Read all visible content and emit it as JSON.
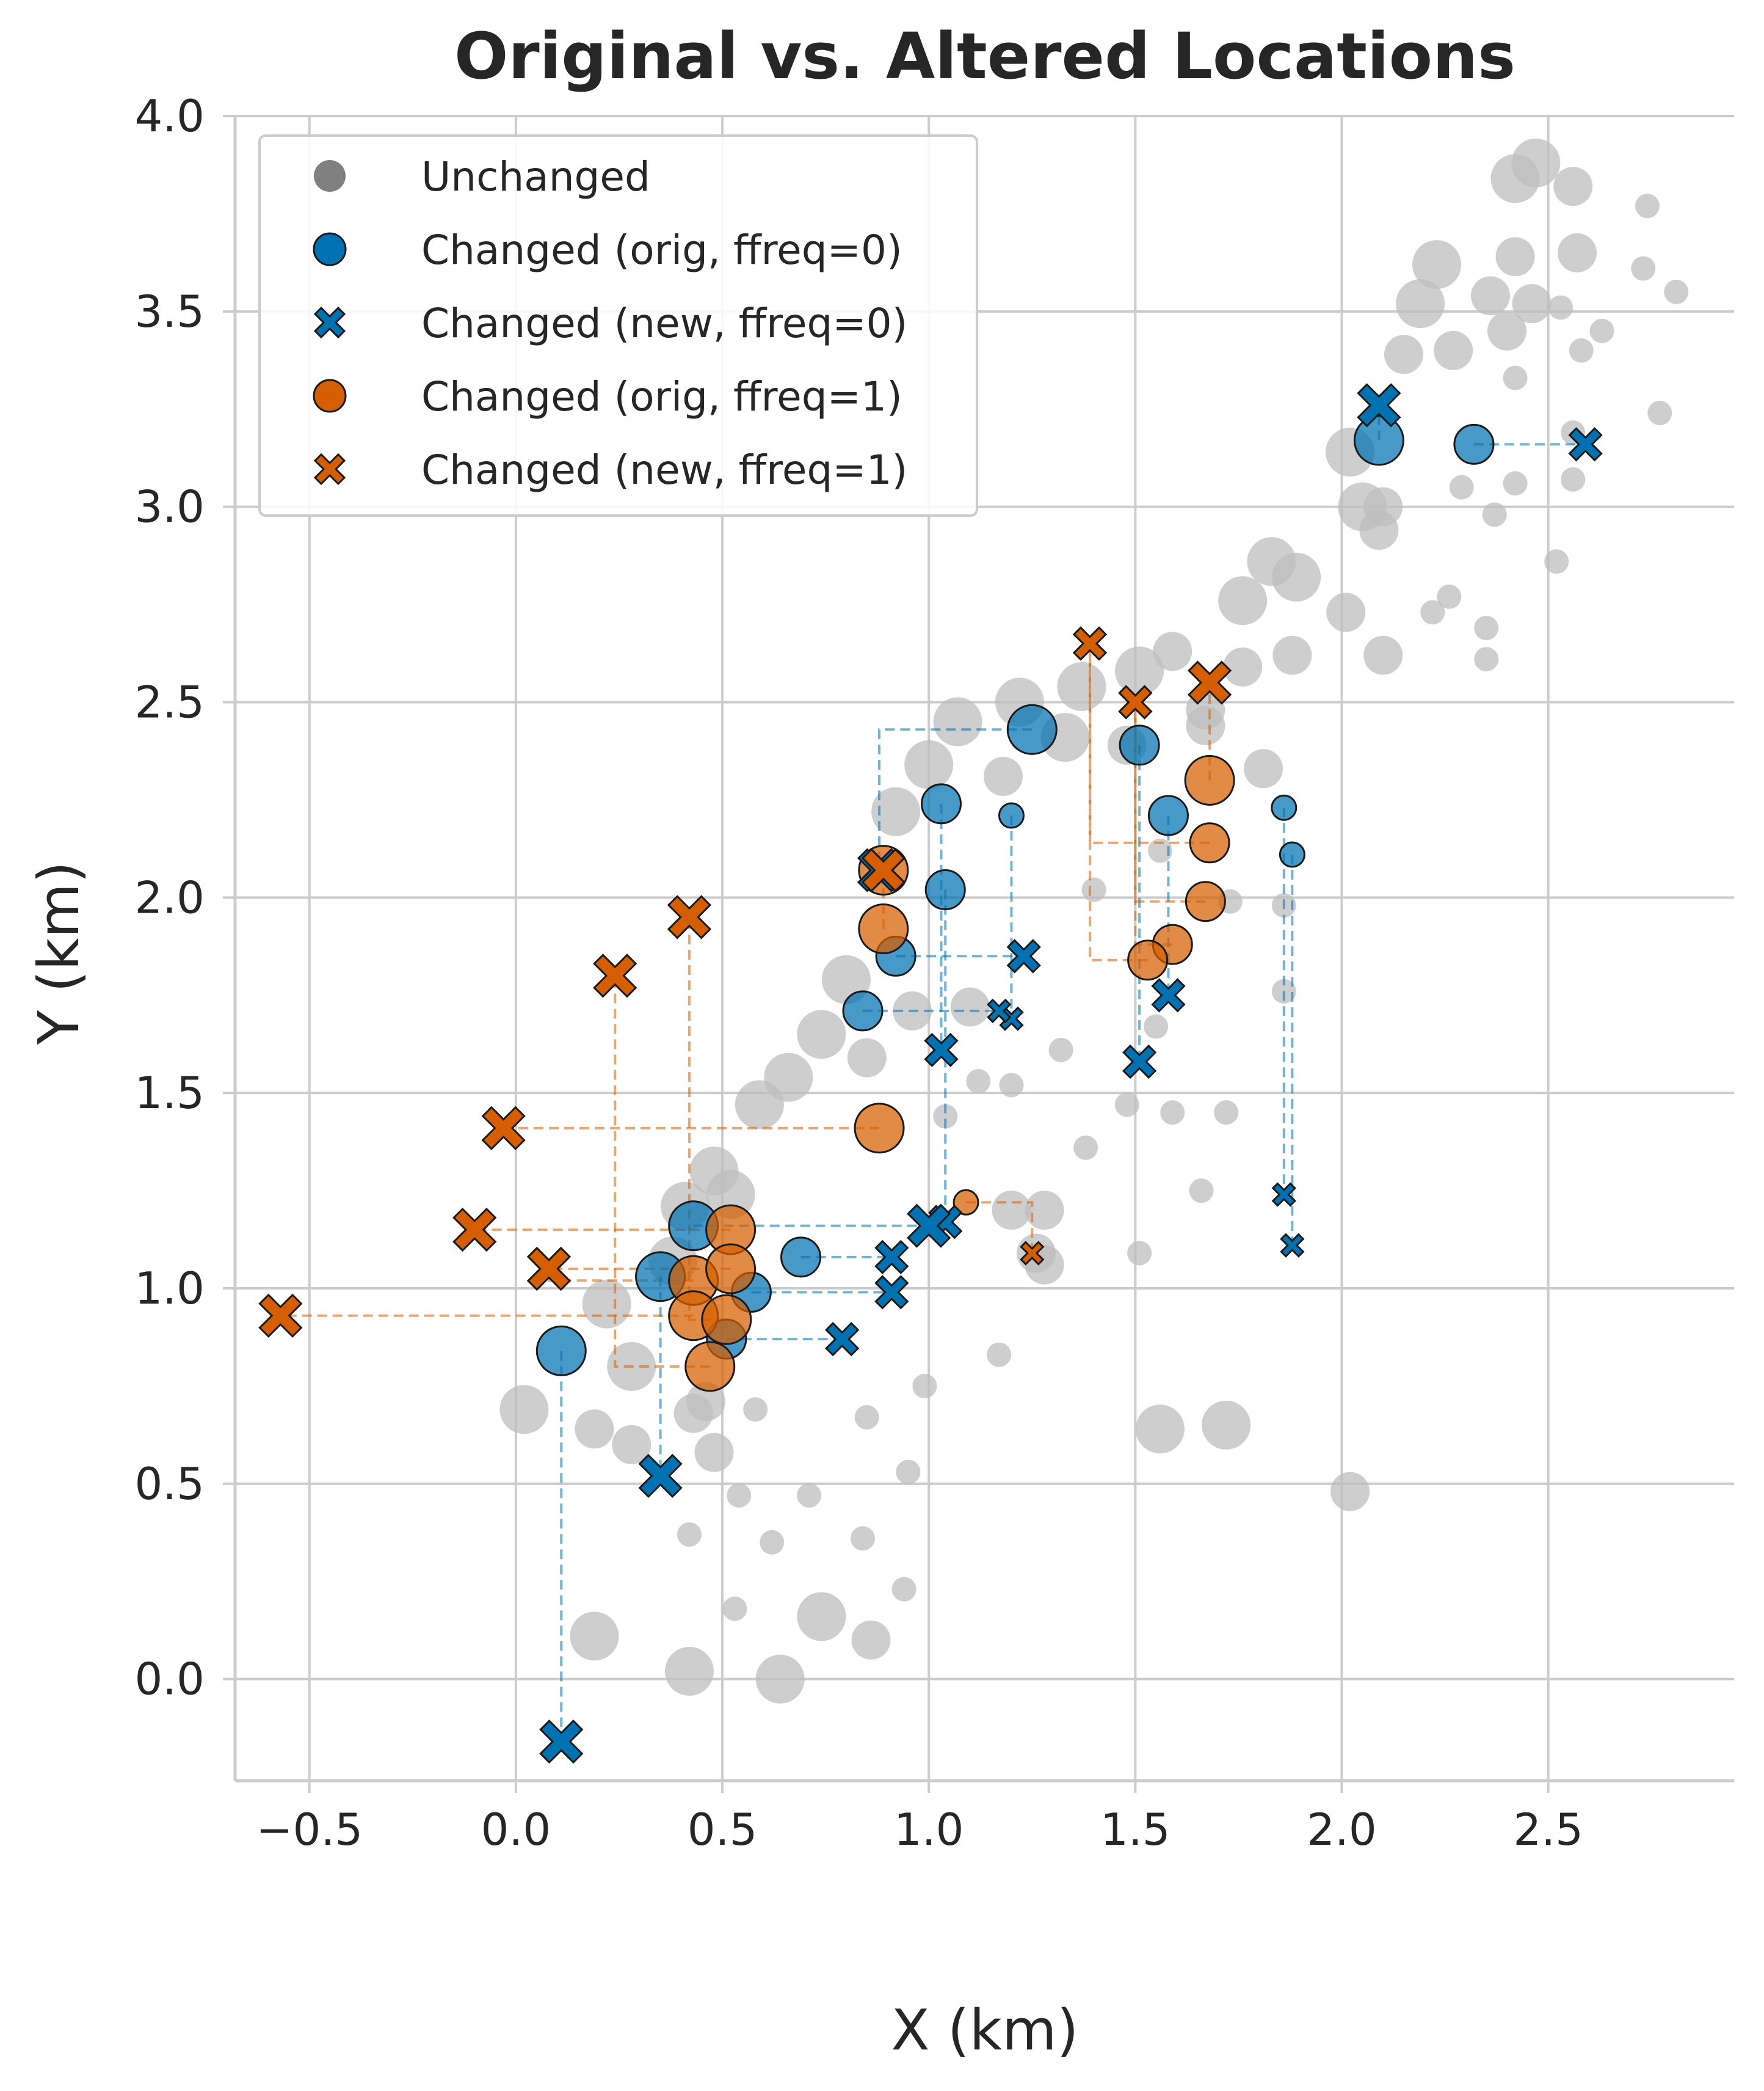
{
  "chart_data": {
    "type": "scatter",
    "title": "Original vs. Altered Locations",
    "xlabel": "X (km)",
    "ylabel": "Y (km)",
    "xlim": [
      -0.68,
      2.95
    ],
    "ylim": [
      -0.26,
      4.0
    ],
    "xticks": [
      -0.5,
      0.0,
      0.5,
      1.0,
      1.5,
      2.0,
      2.5
    ],
    "xtick_labels": [
      "−0.5",
      "0.0",
      "0.5",
      "1.0",
      "1.5",
      "2.0",
      "2.5"
    ],
    "yticks": [
      0.0,
      0.5,
      1.0,
      1.5,
      2.0,
      2.5,
      3.0,
      3.5,
      4.0
    ],
    "ytick_labels": [
      "0.0",
      "0.5",
      "1.0",
      "1.5",
      "2.0",
      "2.5",
      "3.0",
      "3.5",
      "4.0"
    ],
    "grid": true,
    "legend_position": "top-left",
    "colors": {
      "unchanged": "#bdbdbd",
      "unchanged_legend": "#808080",
      "ffreq0": "#0072b2",
      "ffreq1": "#d55e00",
      "grid": "#cccccc",
      "text": "#262626"
    },
    "legend": [
      {
        "label": "Unchanged",
        "marker": "circle",
        "color": "#808080"
      },
      {
        "label": "Changed (orig, ffreq=0)",
        "marker": "circle",
        "color": "#0072b2"
      },
      {
        "label": "Changed (new, ffreq=0)",
        "marker": "x",
        "color": "#0072b2"
      },
      {
        "label": "Changed (orig, ffreq=1)",
        "marker": "circle",
        "color": "#d55e00"
      },
      {
        "label": "Changed (new, ffreq=1)",
        "marker": "x",
        "color": "#d55e00"
      }
    ],
    "unchanged_points": [
      [
        2.47,
        3.88,
        2
      ],
      [
        2.42,
        3.84,
        2
      ],
      [
        2.56,
        3.82,
        1
      ],
      [
        2.74,
        3.77,
        0
      ],
      [
        2.23,
        3.62,
        2
      ],
      [
        2.42,
        3.64,
        1
      ],
      [
        2.57,
        3.65,
        1
      ],
      [
        2.73,
        3.61,
        0
      ],
      [
        2.81,
        3.55,
        0
      ],
      [
        2.19,
        3.52,
        2
      ],
      [
        2.36,
        3.54,
        1
      ],
      [
        2.46,
        3.52,
        1
      ],
      [
        2.53,
        3.51,
        0
      ],
      [
        2.27,
        3.4,
        1
      ],
      [
        2.4,
        3.45,
        1
      ],
      [
        2.63,
        3.45,
        0
      ],
      [
        2.58,
        3.4,
        0
      ],
      [
        2.15,
        3.39,
        1
      ],
      [
        2.42,
        3.33,
        0
      ],
      [
        2.56,
        3.19,
        0
      ],
      [
        2.77,
        3.24,
        0
      ],
      [
        2.02,
        3.14,
        2
      ],
      [
        2.05,
        3.0,
        2
      ],
      [
        2.1,
        3.0,
        1
      ],
      [
        2.09,
        2.94,
        1
      ],
      [
        2.29,
        3.05,
        0
      ],
      [
        2.42,
        3.06,
        0
      ],
      [
        2.37,
        2.98,
        0
      ],
      [
        2.56,
        3.07,
        0
      ],
      [
        2.52,
        2.86,
        0
      ],
      [
        1.83,
        2.86,
        2
      ],
      [
        1.89,
        2.82,
        2
      ],
      [
        1.76,
        2.76,
        2
      ],
      [
        2.01,
        2.73,
        1
      ],
      [
        2.26,
        2.77,
        0
      ],
      [
        2.22,
        2.73,
        0
      ],
      [
        2.35,
        2.69,
        0
      ],
      [
        2.1,
        2.62,
        1
      ],
      [
        1.88,
        2.62,
        1
      ],
      [
        2.35,
        2.61,
        0
      ],
      [
        1.51,
        2.58,
        2
      ],
      [
        1.59,
        2.63,
        1
      ],
      [
        1.76,
        2.59,
        1
      ],
      [
        1.37,
        2.54,
        2
      ],
      [
        1.22,
        2.5,
        2
      ],
      [
        1.33,
        2.41,
        2
      ],
      [
        1.07,
        2.45,
        2
      ],
      [
        1.67,
        2.44,
        1
      ],
      [
        1.67,
        2.48,
        1
      ],
      [
        1.0,
        2.34,
        2
      ],
      [
        1.48,
        2.39,
        1
      ],
      [
        1.18,
        2.31,
        1
      ],
      [
        0.92,
        2.22,
        2
      ],
      [
        1.81,
        2.33,
        1
      ],
      [
        1.4,
        2.02,
        0
      ],
      [
        1.73,
        1.99,
        0
      ],
      [
        1.86,
        1.98,
        0
      ],
      [
        1.56,
        2.12,
        0
      ],
      [
        0.8,
        1.79,
        2
      ],
      [
        0.96,
        1.71,
        1
      ],
      [
        1.1,
        1.72,
        1
      ],
      [
        0.74,
        1.65,
        2
      ],
      [
        0.85,
        1.59,
        1
      ],
      [
        1.12,
        1.53,
        0
      ],
      [
        1.2,
        1.52,
        0
      ],
      [
        1.32,
        1.61,
        0
      ],
      [
        1.55,
        1.67,
        0
      ],
      [
        1.86,
        1.76,
        0
      ],
      [
        0.66,
        1.54,
        2
      ],
      [
        0.59,
        1.47,
        2
      ],
      [
        1.04,
        1.44,
        0
      ],
      [
        1.48,
        1.47,
        0
      ],
      [
        1.59,
        1.45,
        0
      ],
      [
        1.72,
        1.45,
        0
      ],
      [
        1.38,
        1.36,
        0
      ],
      [
        0.48,
        1.3,
        2
      ],
      [
        0.52,
        1.24,
        2
      ],
      [
        0.41,
        1.21,
        2
      ],
      [
        1.2,
        1.2,
        1
      ],
      [
        1.28,
        1.2,
        1
      ],
      [
        1.66,
        1.25,
        0
      ],
      [
        0.38,
        1.07,
        2
      ],
      [
        1.28,
        1.06,
        1
      ],
      [
        1.51,
        1.09,
        0
      ],
      [
        1.26,
        1.09,
        1
      ],
      [
        0.22,
        0.96,
        2
      ],
      [
        0.28,
        0.8,
        2
      ],
      [
        0.46,
        0.71,
        1
      ],
      [
        0.99,
        0.75,
        0
      ],
      [
        1.17,
        0.83,
        0
      ],
      [
        0.43,
        0.68,
        1
      ],
      [
        0.58,
        0.69,
        0
      ],
      [
        0.02,
        0.69,
        2
      ],
      [
        0.19,
        0.64,
        1
      ],
      [
        0.28,
        0.6,
        1
      ],
      [
        0.48,
        0.58,
        1
      ],
      [
        0.85,
        0.67,
        0
      ],
      [
        1.56,
        0.64,
        2
      ],
      [
        1.72,
        0.65,
        2
      ],
      [
        0.54,
        0.47,
        0
      ],
      [
        0.71,
        0.47,
        0
      ],
      [
        0.95,
        0.53,
        0
      ],
      [
        2.02,
        0.48,
        1
      ],
      [
        0.42,
        0.37,
        0
      ],
      [
        0.84,
        0.36,
        0
      ],
      [
        0.62,
        0.35,
        0
      ],
      [
        0.94,
        0.23,
        0
      ],
      [
        0.53,
        0.18,
        0
      ],
      [
        0.19,
        0.11,
        2
      ],
      [
        0.74,
        0.16,
        2
      ],
      [
        0.86,
        0.1,
        1
      ],
      [
        0.42,
        0.02,
        2
      ],
      [
        0.64,
        0.0,
        2
      ]
    ],
    "series": [
      {
        "name": "Changed (orig, ffreq=0) → Changed (new, ffreq=0)",
        "color": "#0072b2",
        "pairs": [
          {
            "orig": [
              2.09,
              3.17,
              2
            ],
            "new": [
              2.09,
              3.26,
              2
            ]
          },
          {
            "orig": [
              2.32,
              3.16,
              1
            ],
            "new": [
              2.59,
              3.16,
              1
            ]
          },
          {
            "orig": [
              1.25,
              2.43,
              2
            ],
            "new": [
              0.88,
              2.07,
              2
            ]
          },
          {
            "orig": [
              1.51,
              2.39,
              1
            ],
            "new": [
              1.51,
              1.58,
              1
            ]
          },
          {
            "orig": [
              1.03,
              2.24,
              1
            ],
            "new": [
              1.03,
              1.61,
              1
            ]
          },
          {
            "orig": [
              1.2,
              2.21,
              0
            ],
            "new": [
              1.2,
              1.69,
              0
            ]
          },
          {
            "orig": [
              1.58,
              2.21,
              1
            ],
            "new": [
              1.58,
              1.75,
              1
            ]
          },
          {
            "orig": [
              1.86,
              2.23,
              0
            ],
            "new": [
              1.86,
              1.24,
              0
            ]
          },
          {
            "orig": [
              1.88,
              2.11,
              0
            ],
            "new": [
              1.88,
              1.11,
              0
            ]
          },
          {
            "orig": [
              1.04,
              2.02,
              1
            ],
            "new": [
              1.04,
              1.17,
              1
            ]
          },
          {
            "orig": [
              0.92,
              1.85,
              1
            ],
            "new": [
              1.23,
              1.85,
              1
            ]
          },
          {
            "orig": [
              0.84,
              1.71,
              1
            ],
            "new": [
              1.17,
              1.71,
              0
            ]
          },
          {
            "orig": [
              0.43,
              1.16,
              2
            ],
            "new": [
              1.0,
              1.16,
              2
            ]
          },
          {
            "orig": [
              0.35,
              1.03,
              2
            ],
            "new": [
              0.35,
              0.52,
              2
            ]
          },
          {
            "orig": [
              0.69,
              1.08,
              1
            ],
            "new": [
              0.91,
              1.08,
              1
            ]
          },
          {
            "orig": [
              0.57,
              0.99,
              1
            ],
            "new": [
              0.91,
              0.99,
              1
            ]
          },
          {
            "orig": [
              0.51,
              0.87,
              1
            ],
            "new": [
              0.79,
              0.87,
              1
            ]
          },
          {
            "orig": [
              0.11,
              0.84,
              2
            ],
            "new": [
              0.11,
              -0.16,
              2
            ]
          }
        ]
      },
      {
        "name": "Changed (orig, ffreq=1) → Changed (new, ffreq=1)",
        "color": "#d55e00",
        "pairs": [
          {
            "orig": [
              1.68,
              2.3,
              2
            ],
            "new": [
              1.68,
              2.55,
              2
            ]
          },
          {
            "orig": [
              1.68,
              2.14,
              1
            ],
            "new": [
              1.39,
              2.65,
              1
            ]
          },
          {
            "orig": [
              1.67,
              1.99,
              1
            ],
            "new": [
              1.5,
              2.5,
              1
            ]
          },
          {
            "orig": [
              1.59,
              1.88,
              1
            ],
            "new": [
              1.5,
              2.5,
              1
            ]
          },
          {
            "orig": [
              1.53,
              1.84,
              1
            ],
            "new": [
              1.39,
              2.65,
              1
            ]
          },
          {
            "orig": [
              0.89,
              2.07,
              2
            ],
            "new": [
              0.89,
              2.07,
              2
            ]
          },
          {
            "orig": [
              0.89,
              1.92,
              2
            ],
            "new": [
              0.89,
              2.07,
              2
            ]
          },
          {
            "orig": [
              0.88,
              1.41,
              2
            ],
            "new": [
              -0.03,
              1.41,
              2
            ]
          },
          {
            "orig": [
              0.52,
              1.15,
              2
            ],
            "new": [
              -0.1,
              1.15,
              2
            ]
          },
          {
            "orig": [
              0.43,
              1.02,
              2
            ],
            "new": [
              0.08,
              1.05,
              2
            ]
          },
          {
            "orig": [
              0.52,
              1.05,
              2
            ],
            "new": [
              0.08,
              1.05,
              2
            ]
          },
          {
            "orig": [
              0.43,
              0.93,
              2
            ],
            "new": [
              -0.57,
              0.93,
              2
            ]
          },
          {
            "orig": [
              0.51,
              0.92,
              2
            ],
            "new": [
              0.42,
              1.95,
              2
            ]
          },
          {
            "orig": [
              0.47,
              0.8,
              2
            ],
            "new": [
              0.24,
              1.8,
              2
            ]
          },
          {
            "orig": [
              1.09,
              1.22,
              0
            ],
            "new": [
              1.25,
              1.09,
              0
            ]
          }
        ]
      }
    ]
  }
}
